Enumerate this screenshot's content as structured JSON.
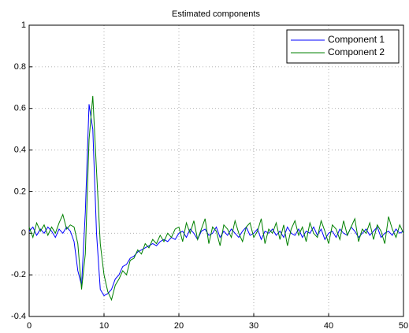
{
  "chart_data": {
    "type": "line",
    "title": "Estimated components",
    "x": [
      0,
      0.5,
      1,
      1.5,
      2,
      2.5,
      3,
      3.5,
      4,
      4.5,
      5,
      5.5,
      6,
      6.5,
      7,
      7.5,
      8,
      8.5,
      9,
      9.5,
      10,
      10.5,
      11,
      11.5,
      12,
      12.5,
      13,
      13.5,
      14,
      14.5,
      15,
      15.5,
      16,
      16.5,
      17,
      17.5,
      18,
      18.5,
      19,
      19.5,
      20,
      20.5,
      21,
      21.5,
      22,
      22.5,
      23,
      23.5,
      24,
      24.5,
      25,
      25.5,
      26,
      26.5,
      27,
      27.5,
      28,
      28.5,
      29,
      29.5,
      30,
      30.5,
      31,
      31.5,
      32,
      32.5,
      33,
      33.5,
      34,
      34.5,
      35,
      35.5,
      36,
      36.5,
      37,
      37.5,
      38,
      38.5,
      39,
      39.5,
      40,
      40.5,
      41,
      41.5,
      42,
      42.5,
      43,
      43.5,
      44,
      44.5,
      45,
      45.5,
      46,
      46.5,
      47,
      47.5,
      48,
      48.5,
      49,
      49.5,
      50
    ],
    "series": [
      {
        "name": "Component 1",
        "color": "#0000ff",
        "values": [
          0.01,
          0.03,
          -0.01,
          0.02,
          0.0,
          0.03,
          0.01,
          -0.02,
          0.02,
          0.0,
          0.03,
          0.01,
          -0.04,
          -0.18,
          -0.25,
          0.1,
          0.62,
          0.5,
          0.0,
          -0.27,
          -0.3,
          -0.29,
          -0.27,
          -0.22,
          -0.2,
          -0.16,
          -0.15,
          -0.12,
          -0.11,
          -0.09,
          -0.08,
          -0.07,
          -0.06,
          -0.05,
          -0.06,
          -0.04,
          -0.03,
          -0.04,
          -0.02,
          -0.03,
          0.0,
          0.01,
          -0.02,
          0.02,
          0.0,
          -0.03,
          0.01,
          0.02,
          -0.01,
          0.0,
          0.03,
          -0.02,
          0.01,
          -0.01,
          0.02,
          0.0,
          -0.02,
          0.01,
          0.03,
          -0.01,
          0.0,
          0.02,
          -0.03,
          0.01,
          0.0,
          0.02,
          -0.01,
          0.01,
          -0.02,
          0.03,
          0.0,
          -0.01,
          0.02,
          -0.02,
          0.01,
          0.0,
          0.03,
          -0.01,
          0.02,
          -0.03,
          0.0,
          0.01,
          -0.02,
          0.02,
          0.0,
          -0.01,
          0.03,
          0.01,
          -0.02,
          0.0,
          0.02,
          -0.01,
          0.01,
          0.03,
          -0.02,
          0.0,
          0.01,
          -0.01,
          0.02,
          0.0,
          0.01
        ]
      },
      {
        "name": "Component 2",
        "color": "#008000",
        "values": [
          0.03,
          -0.02,
          0.05,
          0.01,
          0.04,
          -0.01,
          0.03,
          0.0,
          0.05,
          0.09,
          0.02,
          0.04,
          0.03,
          -0.05,
          -0.27,
          -0.1,
          0.45,
          0.66,
          0.3,
          -0.05,
          -0.2,
          -0.28,
          -0.32,
          -0.25,
          -0.22,
          -0.18,
          -0.2,
          -0.13,
          -0.12,
          -0.08,
          -0.1,
          -0.05,
          -0.07,
          -0.03,
          -0.05,
          -0.01,
          -0.04,
          0.0,
          -0.02,
          0.02,
          0.03,
          -0.04,
          0.05,
          0.0,
          0.06,
          -0.03,
          0.02,
          0.07,
          -0.05,
          0.03,
          0.01,
          -0.06,
          0.04,
          0.02,
          -0.02,
          0.06,
          0.0,
          -0.04,
          0.03,
          0.05,
          -0.02,
          0.01,
          0.07,
          -0.05,
          0.02,
          0.0,
          0.05,
          -0.03,
          0.04,
          -0.06,
          0.02,
          0.06,
          -0.01,
          0.03,
          -0.04,
          0.05,
          0.0,
          -0.02,
          0.06,
          0.01,
          -0.05,
          0.04,
          0.02,
          -0.03,
          0.06,
          -0.01,
          0.03,
          0.07,
          -0.04,
          0.02,
          0.0,
          0.05,
          -0.03,
          0.04,
          0.01,
          -0.05,
          0.08,
          0.02,
          -0.02,
          0.04,
          0.0
        ]
      }
    ],
    "xlim": [
      0,
      50
    ],
    "ylim": [
      -0.4,
      1
    ],
    "xticks": [
      0,
      10,
      20,
      30,
      40,
      50
    ],
    "yticks": [
      -0.4,
      -0.2,
      0,
      0.2,
      0.4,
      0.6,
      0.8,
      1
    ],
    "grid": true,
    "legend": "top-right"
  }
}
